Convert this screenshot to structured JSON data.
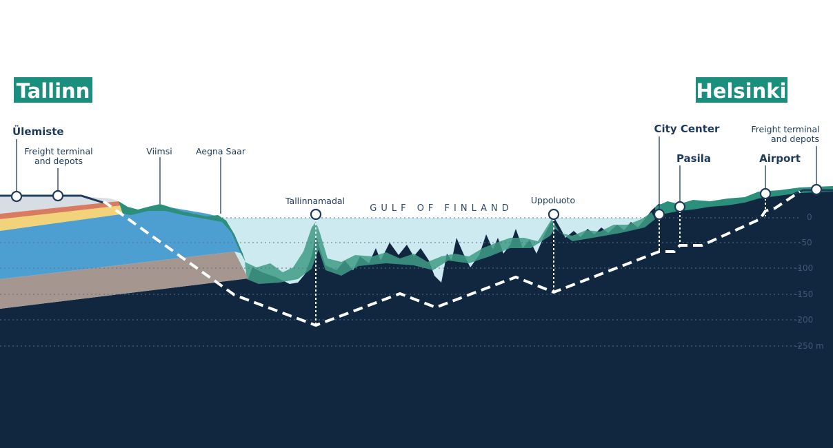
{
  "cities": {
    "left": "Tallinn",
    "right": "Helsinki"
  },
  "sea_label": "GULF OF FINLAND",
  "stations": {
    "ulemiste": "Ülemiste",
    "freight_tallinn_line1": "Freight terminal",
    "freight_tallinn_line2": "and depots",
    "viimsi": "Viimsi",
    "aegna": "Aegna Saar",
    "tallinnamadal": "Tallinnamadal",
    "uppoluoto": "Uppoluoto",
    "city_center": "City Center",
    "pasila": "Pasila",
    "airport": "Airport",
    "freight_helsinki_line1": "Freight terminal",
    "freight_helsinki_line2": "and depots"
  },
  "depth_axis": {
    "unit": "m",
    "ticks": [
      "0",
      "-50",
      "-100",
      "-150",
      "-200",
      "-250 m"
    ]
  },
  "colors": {
    "bedrock": "#10273f",
    "water": "#cdeaf1",
    "seabed_green": "#3f9c86",
    "shore_green": "#2b8f7b",
    "sediment_blue": "#4d9fd2",
    "clay": "#a59790",
    "sand": "#f2d27a",
    "city_tag": "#1a8f7e",
    "text": "#1d3a5a",
    "tunnel": "#ffffff"
  }
}
